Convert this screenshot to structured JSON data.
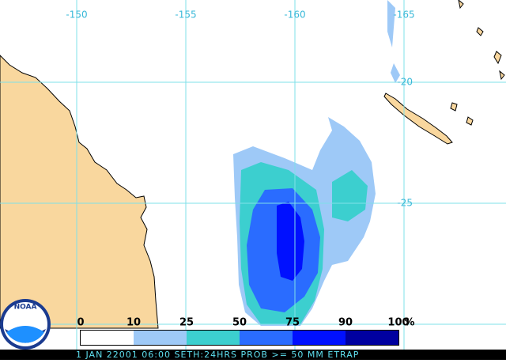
{
  "map": {
    "longitudes": [
      -150,
      -155,
      -160,
      -165
    ],
    "latitudes": [
      -20,
      -25
    ],
    "legend": {
      "ticks": [
        0,
        10,
        25,
        50,
        75,
        90,
        100
      ],
      "unit": "%",
      "colors": [
        "#ffffff",
        "#9ec9f7",
        "#3ccfcf",
        "#2a6cff",
        "#0010ff",
        "#0000a0"
      ]
    },
    "logo": "NOAA",
    "caption": "1 JAN 22001 06:00 SETH:24HRS PROB >= 50 MM ETRAP"
  }
}
